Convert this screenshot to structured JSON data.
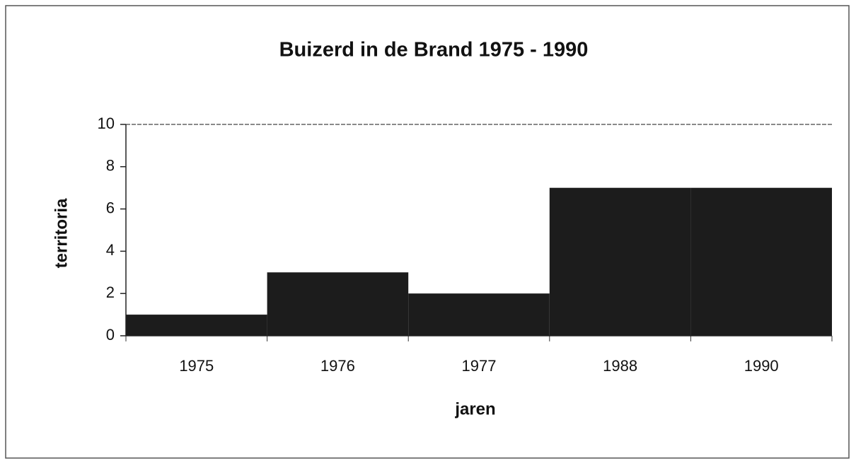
{
  "chart_data": {
    "type": "bar",
    "title": "Buizerd in de Brand 1975 - 1990",
    "x_label": "jaren",
    "y_label": "territoria",
    "categories": [
      "1975",
      "1976",
      "1977",
      "1988",
      "1990"
    ],
    "values": [
      1,
      3,
      2,
      7,
      7
    ],
    "color": "#1c1c1c",
    "ylim": [
      0,
      10
    ],
    "yticks": [
      0,
      2,
      4,
      6,
      8,
      10
    ],
    "grid": false
  }
}
